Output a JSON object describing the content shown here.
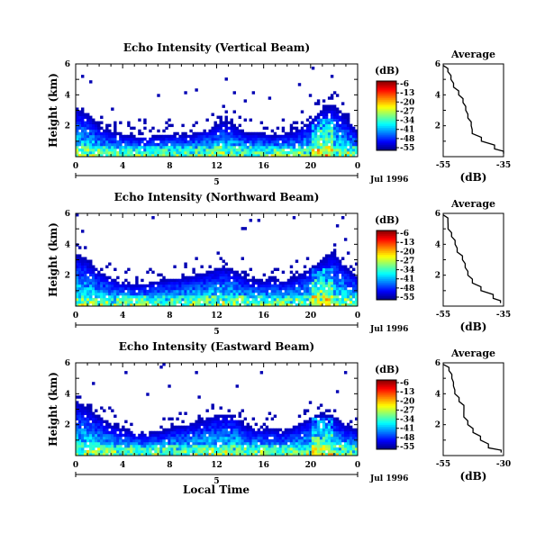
{
  "panels": [
    {
      "title": "Echo Intensity (Vertical Beam)",
      "ylabel": "Height (km)",
      "y_ticks": [
        "6",
        "4",
        "2"
      ],
      "x_ticks": [
        "0",
        "4",
        "8",
        "12",
        "16",
        "20",
        "0"
      ],
      "day_label": "5",
      "date_label": "Jul 1996",
      "colorbar_unit": "(dB)",
      "colorbar_ticks": [
        "-6",
        "-13",
        "-20",
        "-27",
        "-34",
        "-41",
        "-48",
        "-55"
      ],
      "avg_title": "Average",
      "avg_unit": "(dB)",
      "avg_x_ticks": [
        "-55",
        "-35"
      ],
      "avg_y_ticks": [
        "6",
        "4",
        "2"
      ]
    },
    {
      "title": "Echo Intensity (Northward Beam)",
      "ylabel": "Height (km)",
      "y_ticks": [
        "6",
        "4",
        "2"
      ],
      "x_ticks": [
        "0",
        "4",
        "8",
        "12",
        "16",
        "20",
        "0"
      ],
      "day_label": "5",
      "date_label": "Jul 1996",
      "colorbar_unit": "(dB)",
      "colorbar_ticks": [
        "-6",
        "-13",
        "-20",
        "-27",
        "-34",
        "-41",
        "-48",
        "-55"
      ],
      "avg_title": "Average",
      "avg_unit": "(dB)",
      "avg_x_ticks": [
        "-55",
        "-35"
      ],
      "avg_y_ticks": [
        "6",
        "4",
        "2"
      ]
    },
    {
      "title": "Echo Intensity (Eastward Beam)",
      "ylabel": "Height (km)",
      "y_ticks": [
        "6",
        "4",
        "2"
      ],
      "x_ticks": [
        "0",
        "4",
        "8",
        "12",
        "16",
        "20",
        "0"
      ],
      "day_label": "5",
      "date_label": "Jul 1996",
      "colorbar_unit": "(dB)",
      "colorbar_ticks": [
        "-6",
        "-13",
        "-20",
        "-27",
        "-34",
        "-41",
        "-48",
        "-55"
      ],
      "avg_title": "Average",
      "avg_unit": "(dB)",
      "avg_x_ticks": [
        "-55",
        "-30"
      ],
      "avg_y_ticks": [
        "6",
        "4",
        "2"
      ]
    }
  ],
  "xlabel": "Local Time",
  "chart_data": [
    {
      "type": "heatmap",
      "title": "Echo Intensity (Vertical Beam)",
      "ylabel": "Height (km)",
      "xlabel": "",
      "x_range_hours": [
        0,
        24
      ],
      "ylim_km": [
        0,
        6
      ],
      "color_range_db": [
        -55,
        -6
      ],
      "profile": {
        "type": "line",
        "title": "Average",
        "xlabel": "(dB)",
        "xlim": [
          -55,
          -35
        ],
        "ylim": [
          0,
          6
        ],
        "height_km": [
          0.2,
          0.5,
          1.0,
          1.5,
          2.0,
          2.5,
          3.0,
          3.5,
          4.0,
          4.5,
          5.0,
          5.5,
          5.9
        ],
        "db": [
          -35,
          -38,
          -42,
          -45,
          -46,
          -47,
          -48,
          -49,
          -50,
          -51,
          -52,
          -53,
          -55
        ]
      },
      "echo_top_km": [
        3.2,
        2.8,
        1.9,
        1.6,
        1.4,
        1.3,
        1.3,
        1.4,
        1.5,
        1.4,
        1.6,
        1.8,
        2.3,
        2.0,
        1.5,
        1.6,
        1.4,
        1.5,
        1.7,
        2.2,
        3.0,
        3.4,
        2.6,
        1.6
      ]
    },
    {
      "type": "heatmap",
      "title": "Echo Intensity (Northward Beam)",
      "ylabel": "Height (km)",
      "xlabel": "",
      "x_range_hours": [
        0,
        24
      ],
      "ylim_km": [
        0,
        6
      ],
      "color_range_db": [
        -55,
        -6
      ],
      "profile": {
        "type": "line",
        "title": "Average",
        "xlabel": "(dB)",
        "xlim": [
          -55,
          -35
        ],
        "ylim": [
          0,
          6
        ],
        "height_km": [
          0.2,
          0.5,
          1.0,
          1.5,
          2.0,
          2.5,
          3.0,
          3.5,
          4.0,
          4.5,
          5.0,
          5.5,
          5.9
        ],
        "db": [
          -36,
          -39,
          -42,
          -45,
          -47,
          -48,
          -49,
          -50,
          -51,
          -52,
          -53,
          -54,
          -55
        ]
      },
      "echo_top_km": [
        3.4,
        3.0,
        2.2,
        1.8,
        1.5,
        1.4,
        1.5,
        1.7,
        1.8,
        1.9,
        2.1,
        2.3,
        2.6,
        2.3,
        1.8,
        1.6,
        1.8,
        1.6,
        1.9,
        2.4,
        3.0,
        3.6,
        2.6,
        1.9
      ]
    },
    {
      "type": "heatmap",
      "title": "Echo Intensity (Eastward Beam)",
      "ylabel": "Height (km)",
      "xlabel": "Local Time",
      "x_range_hours": [
        0,
        24
      ],
      "ylim_km": [
        0,
        6
      ],
      "color_range_db": [
        -55,
        -6
      ],
      "profile": {
        "type": "line",
        "title": "Average",
        "xlabel": "(dB)",
        "xlim": [
          -55,
          -30
        ],
        "ylim": [
          0,
          6
        ],
        "height_km": [
          0.2,
          0.5,
          1.0,
          1.5,
          2.0,
          2.5,
          3.0,
          3.5,
          4.0,
          4.5,
          5.0,
          5.5,
          5.9
        ],
        "db": [
          -31,
          -36,
          -40,
          -43,
          -45,
          -46,
          -47,
          -49,
          -50,
          -51,
          -52,
          -53,
          -55
        ]
      },
      "echo_top_km": [
        3.6,
        3.1,
        2.5,
        2.0,
        1.7,
        1.5,
        1.5,
        1.6,
        1.9,
        2.0,
        2.2,
        2.5,
        2.7,
        2.6,
        1.9,
        1.7,
        1.8,
        1.6,
        2.0,
        2.4,
        2.8,
        2.6,
        2.0,
        1.7
      ]
    }
  ]
}
